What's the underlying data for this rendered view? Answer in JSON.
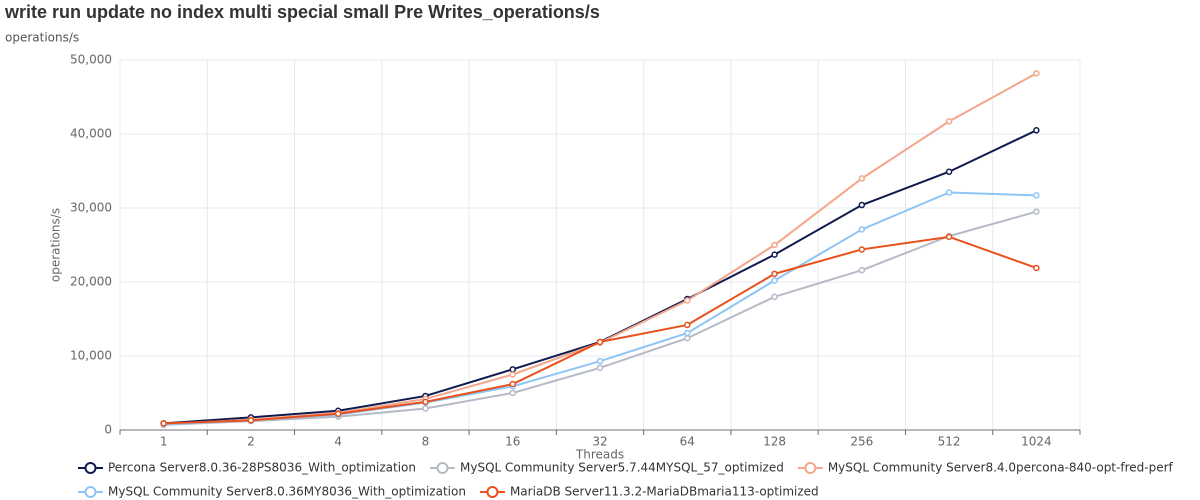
{
  "chart_data": {
    "type": "line",
    "title": "write run update no index multi special small Pre Writes_operations/s",
    "subtitle": "operations/s",
    "x_label": "Threads",
    "y_label": "operations/s",
    "categories": [
      "1",
      "2",
      "4",
      "8",
      "16",
      "32",
      "64",
      "128",
      "256",
      "512",
      "1024"
    ],
    "ylim": [
      0,
      50000
    ],
    "yticks": [
      0,
      {
        "value": 10000,
        "label": "10,000"
      },
      {
        "value": 20000,
        "label": "20,000"
      },
      {
        "value": 30000,
        "label": "30,000"
      },
      {
        "value": 40000,
        "label": "40,000"
      },
      {
        "value": 50000,
        "label": "50,000"
      }
    ],
    "grid": true,
    "legend": "bottom",
    "series": [
      {
        "name": "Percona Server8.0.36-28PS8036_With_optimization",
        "color": "#0f1b4f",
        "values": [
          900,
          1700,
          2600,
          4600,
          8200,
          11900,
          17700,
          23700,
          30400,
          34900,
          40500
        ]
      },
      {
        "name": "MySQL Community Server5.7.44MYSQL_57_optimized",
        "color": "#b6bac6",
        "values": [
          700,
          1200,
          1800,
          2900,
          5000,
          8400,
          12400,
          18000,
          21600,
          26200,
          29500
        ]
      },
      {
        "name": "MySQL Community Server8.4.0percona-840-opt-fred-perf",
        "color": "#f4a58a",
        "values": [
          800,
          1400,
          2300,
          4200,
          7500,
          11800,
          17500,
          25000,
          34000,
          41700,
          48200
        ]
      },
      {
        "name": "MySQL Community Server8.0.36MY8036_With_optimization",
        "color": "#8ec5f5",
        "values": [
          800,
          1300,
          2100,
          3700,
          5900,
          9300,
          13100,
          20200,
          27100,
          32100,
          31700
        ]
      },
      {
        "name": "MariaDB Server11.3.2-MariaDBmaria113-optimized",
        "color": "#e8501c",
        "values": [
          900,
          1300,
          2200,
          3800,
          6200,
          11900,
          14200,
          21100,
          24400,
          26100,
          21900
        ]
      }
    ]
  }
}
